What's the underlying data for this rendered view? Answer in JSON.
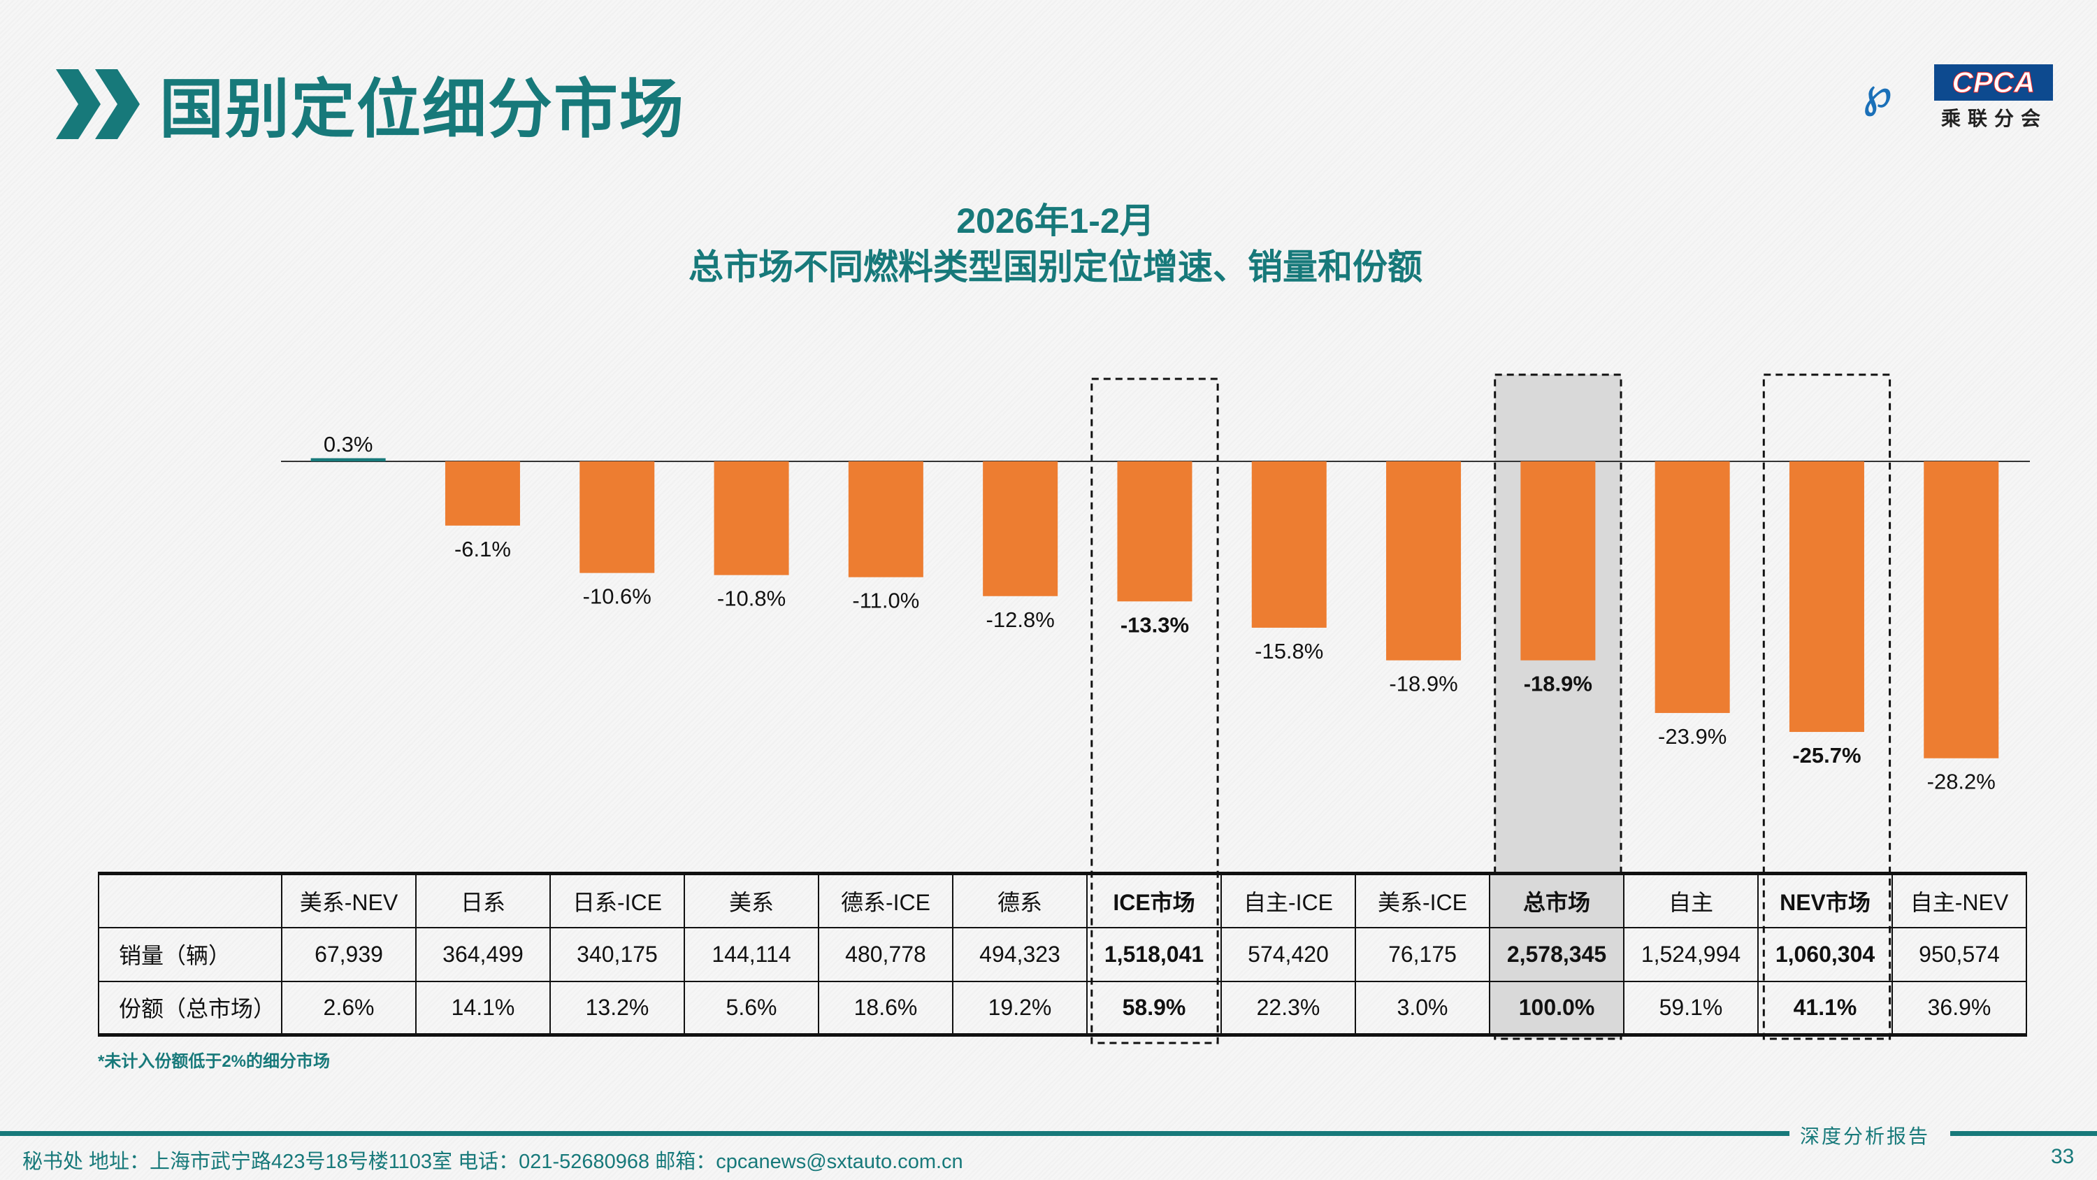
{
  "header": {
    "title": "国别定位细分市场",
    "logo_text": "CPCA",
    "logo_sub": "乘联分会",
    "logo_mark": "CADA"
  },
  "chart_data": {
    "type": "bar",
    "title": "2026年1-2月",
    "subtitle": "总市场不同燃料类型国别定位增速、销量和份额",
    "categories": [
      "美系-NEV",
      "日系",
      "日系-ICE",
      "美系",
      "德系-ICE",
      "德系",
      "ICE市场",
      "自主-ICE",
      "美系-ICE",
      "总市场",
      "自主",
      "NEV市场",
      "自主-NEV"
    ],
    "values": [
      0.3,
      -6.1,
      -10.6,
      -10.8,
      -11.0,
      -12.8,
      -13.3,
      -15.8,
      -18.9,
      -18.9,
      -23.9,
      -25.7,
      -28.2
    ],
    "labels": [
      "0.3%",
      "-6.1%",
      "-10.6%",
      "-10.8%",
      "-11.0%",
      "-12.8%",
      "-13.3%",
      "-15.8%",
      "-18.9%",
      "-18.9%",
      "-23.9%",
      "-25.7%",
      "-28.2%"
    ],
    "highlighted": [
      6,
      9,
      11
    ],
    "ylabel": "增速",
    "unit": "%",
    "bar_color": "#ed7d31"
  },
  "table": {
    "row_labels": [
      "销量（辆）",
      "份额（总市场）"
    ],
    "sales": [
      "67,939",
      "364,499",
      "340,175",
      "144,114",
      "480,778",
      "494,323",
      "1,518,041",
      "574,420",
      "76,175",
      "2,578,345",
      "1,524,994",
      "1,060,304",
      "950,574"
    ],
    "share": [
      "2.6%",
      "14.1%",
      "13.2%",
      "5.6%",
      "18.6%",
      "19.2%",
      "58.9%",
      "22.3%",
      "3.0%",
      "100.0%",
      "59.1%",
      "41.1%",
      "36.9%"
    ]
  },
  "note": "*未计入份额低于2%的细分市场",
  "footer": {
    "report": "深度分析报告",
    "address": "秘书处  地址：上海市武宁路423号18号楼1103室  电话：021-52680968  邮箱：cpcanews@sxtauto.com.cn",
    "page": "33"
  }
}
